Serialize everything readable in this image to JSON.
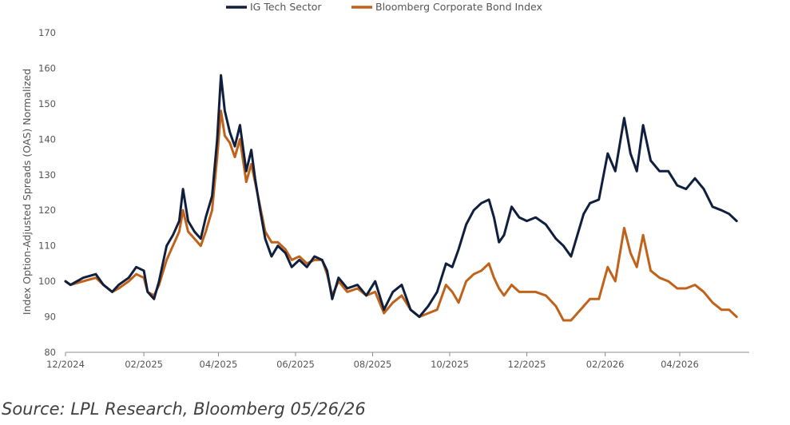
{
  "chart_data": {
    "type": "line",
    "title": "",
    "ylabel": "Index Option-Adjusted Spreads (OAS) Normalized",
    "xlabel": "",
    "ylim": [
      80,
      170
    ],
    "yticks": [
      80,
      90,
      100,
      110,
      120,
      130,
      140,
      150,
      160,
      170
    ],
    "xlim": [
      "2024-12-01",
      "2026-05-26"
    ],
    "xticks": [
      "12/2024",
      "02/2025",
      "04/2025",
      "06/2025",
      "08/2025",
      "10/2025",
      "12/2025",
      "02/2026",
      "04/2026"
    ],
    "grid": false,
    "legend_position": "top-center",
    "series": [
      {
        "name": "IG Tech Sector",
        "color": "#0f1f3d",
        "points": [
          [
            "2024-12-01",
            100
          ],
          [
            "2024-12-05",
            99
          ],
          [
            "2024-12-15",
            101
          ],
          [
            "2024-12-25",
            102
          ],
          [
            "2024-12-31",
            99
          ],
          [
            "2025-01-07",
            97
          ],
          [
            "2025-01-12",
            99
          ],
          [
            "2025-01-20",
            101
          ],
          [
            "2025-01-26",
            104
          ],
          [
            "2025-02-01",
            103
          ],
          [
            "2025-02-04",
            97
          ],
          [
            "2025-02-09",
            95
          ],
          [
            "2025-02-13",
            100
          ],
          [
            "2025-02-19",
            110
          ],
          [
            "2025-02-24",
            113
          ],
          [
            "2025-03-01",
            117
          ],
          [
            "2025-03-04",
            126
          ],
          [
            "2025-03-08",
            117
          ],
          [
            "2025-03-13",
            114
          ],
          [
            "2025-03-18",
            112
          ],
          [
            "2025-03-22",
            118
          ],
          [
            "2025-03-27",
            124
          ],
          [
            "2025-03-31",
            140
          ],
          [
            "2025-04-03",
            158
          ],
          [
            "2025-04-06",
            148
          ],
          [
            "2025-04-10",
            142
          ],
          [
            "2025-04-14",
            138
          ],
          [
            "2025-04-18",
            144
          ],
          [
            "2025-04-23",
            131
          ],
          [
            "2025-04-27",
            137
          ],
          [
            "2025-04-30",
            129
          ],
          [
            "2025-05-04",
            120
          ],
          [
            "2025-05-08",
            112
          ],
          [
            "2025-05-13",
            107
          ],
          [
            "2025-05-18",
            110
          ],
          [
            "2025-05-24",
            108
          ],
          [
            "2025-05-29",
            104
          ],
          [
            "2025-06-04",
            106
          ],
          [
            "2025-06-10",
            104
          ],
          [
            "2025-06-16",
            107
          ],
          [
            "2025-06-22",
            106
          ],
          [
            "2025-06-26",
            103
          ],
          [
            "2025-06-30",
            95
          ],
          [
            "2025-07-05",
            101
          ],
          [
            "2025-07-12",
            98
          ],
          [
            "2025-07-20",
            99
          ],
          [
            "2025-07-27",
            96
          ],
          [
            "2025-08-03",
            100
          ],
          [
            "2025-08-10",
            92
          ],
          [
            "2025-08-17",
            97
          ],
          [
            "2025-08-24",
            99
          ],
          [
            "2025-08-31",
            92
          ],
          [
            "2025-09-07",
            90
          ],
          [
            "2025-09-14",
            93
          ],
          [
            "2025-09-21",
            97
          ],
          [
            "2025-09-28",
            105
          ],
          [
            "2025-10-03",
            104
          ],
          [
            "2025-10-08",
            109
          ],
          [
            "2025-10-14",
            116
          ],
          [
            "2025-10-20",
            120
          ],
          [
            "2025-10-26",
            122
          ],
          [
            "2025-11-01",
            123
          ],
          [
            "2025-11-05",
            118
          ],
          [
            "2025-11-09",
            111
          ],
          [
            "2025-11-13",
            113
          ],
          [
            "2025-11-19",
            121
          ],
          [
            "2025-11-25",
            118
          ],
          [
            "2025-12-01",
            117
          ],
          [
            "2025-12-08",
            118
          ],
          [
            "2025-12-16",
            116
          ],
          [
            "2025-12-24",
            112
          ],
          [
            "2025-12-30",
            110
          ],
          [
            "2026-01-05",
            107
          ],
          [
            "2026-01-10",
            113
          ],
          [
            "2026-01-15",
            119
          ],
          [
            "2026-01-20",
            122
          ],
          [
            "2026-01-27",
            123
          ],
          [
            "2026-02-03",
            136
          ],
          [
            "2026-02-09",
            131
          ],
          [
            "2026-02-16",
            146
          ],
          [
            "2026-02-21",
            136
          ],
          [
            "2026-02-26",
            131
          ],
          [
            "2026-03-03",
            144
          ],
          [
            "2026-03-09",
            134
          ],
          [
            "2026-03-16",
            131
          ],
          [
            "2026-03-23",
            131
          ],
          [
            "2026-03-30",
            127
          ],
          [
            "2026-04-06",
            126
          ],
          [
            "2026-04-13",
            129
          ],
          [
            "2026-04-20",
            126
          ],
          [
            "2026-04-27",
            121
          ],
          [
            "2026-05-04",
            120
          ],
          [
            "2026-05-10",
            119
          ],
          [
            "2026-05-16",
            117
          ]
        ]
      },
      {
        "name": "Bloomberg Corporate Bond Index",
        "color": "#c0621a",
        "points": [
          [
            "2024-12-01",
            100
          ],
          [
            "2024-12-05",
            99
          ],
          [
            "2024-12-15",
            100
          ],
          [
            "2024-12-25",
            101
          ],
          [
            "2024-12-31",
            99
          ],
          [
            "2025-01-07",
            97
          ],
          [
            "2025-01-12",
            98
          ],
          [
            "2025-01-20",
            100
          ],
          [
            "2025-01-26",
            102
          ],
          [
            "2025-02-01",
            101
          ],
          [
            "2025-02-04",
            97
          ],
          [
            "2025-02-09",
            96
          ],
          [
            "2025-02-13",
            99
          ],
          [
            "2025-02-19",
            106
          ],
          [
            "2025-02-24",
            110
          ],
          [
            "2025-03-01",
            114
          ],
          [
            "2025-03-04",
            120
          ],
          [
            "2025-03-08",
            114
          ],
          [
            "2025-03-13",
            112
          ],
          [
            "2025-03-18",
            110
          ],
          [
            "2025-03-22",
            114
          ],
          [
            "2025-03-27",
            120
          ],
          [
            "2025-03-31",
            135
          ],
          [
            "2025-04-03",
            148
          ],
          [
            "2025-04-06",
            141
          ],
          [
            "2025-04-10",
            139
          ],
          [
            "2025-04-14",
            135
          ],
          [
            "2025-04-18",
            140
          ],
          [
            "2025-04-23",
            128
          ],
          [
            "2025-04-27",
            133
          ],
          [
            "2025-04-30",
            128
          ],
          [
            "2025-05-04",
            121
          ],
          [
            "2025-05-08",
            114
          ],
          [
            "2025-05-13",
            111
          ],
          [
            "2025-05-18",
            111
          ],
          [
            "2025-05-24",
            109
          ],
          [
            "2025-05-29",
            106
          ],
          [
            "2025-06-04",
            107
          ],
          [
            "2025-06-10",
            105
          ],
          [
            "2025-06-16",
            106
          ],
          [
            "2025-06-22",
            106
          ],
          [
            "2025-06-26",
            102
          ],
          [
            "2025-06-30",
            96
          ],
          [
            "2025-07-05",
            100
          ],
          [
            "2025-07-12",
            97
          ],
          [
            "2025-07-20",
            98
          ],
          [
            "2025-07-27",
            96
          ],
          [
            "2025-08-03",
            97
          ],
          [
            "2025-08-10",
            91
          ],
          [
            "2025-08-17",
            94
          ],
          [
            "2025-08-24",
            96
          ],
          [
            "2025-08-31",
            92
          ],
          [
            "2025-09-07",
            90
          ],
          [
            "2025-09-14",
            91
          ],
          [
            "2025-09-21",
            92
          ],
          [
            "2025-09-28",
            99
          ],
          [
            "2025-10-03",
            97
          ],
          [
            "2025-10-08",
            94
          ],
          [
            "2025-10-14",
            100
          ],
          [
            "2025-10-20",
            102
          ],
          [
            "2025-10-26",
            103
          ],
          [
            "2025-11-01",
            105
          ],
          [
            "2025-11-05",
            101
          ],
          [
            "2025-11-09",
            98
          ],
          [
            "2025-11-13",
            96
          ],
          [
            "2025-11-19",
            99
          ],
          [
            "2025-11-25",
            97
          ],
          [
            "2025-12-01",
            97
          ],
          [
            "2025-12-08",
            97
          ],
          [
            "2025-12-16",
            96
          ],
          [
            "2025-12-24",
            93
          ],
          [
            "2025-12-30",
            89
          ],
          [
            "2026-01-05",
            89
          ],
          [
            "2026-01-10",
            91
          ],
          [
            "2026-01-15",
            93
          ],
          [
            "2026-01-20",
            95
          ],
          [
            "2026-01-27",
            95
          ],
          [
            "2026-02-03",
            104
          ],
          [
            "2026-02-09",
            100
          ],
          [
            "2026-02-16",
            115
          ],
          [
            "2026-02-21",
            108
          ],
          [
            "2026-02-26",
            104
          ],
          [
            "2026-03-03",
            113
          ],
          [
            "2026-03-09",
            103
          ],
          [
            "2026-03-16",
            101
          ],
          [
            "2026-03-23",
            100
          ],
          [
            "2026-03-30",
            98
          ],
          [
            "2026-04-06",
            98
          ],
          [
            "2026-04-13",
            99
          ],
          [
            "2026-04-20",
            97
          ],
          [
            "2026-04-27",
            94
          ],
          [
            "2026-05-04",
            92
          ],
          [
            "2026-05-10",
            92
          ],
          [
            "2026-05-16",
            90
          ]
        ]
      }
    ]
  },
  "source": "Source: LPL Research, Bloomberg 05/26/26"
}
